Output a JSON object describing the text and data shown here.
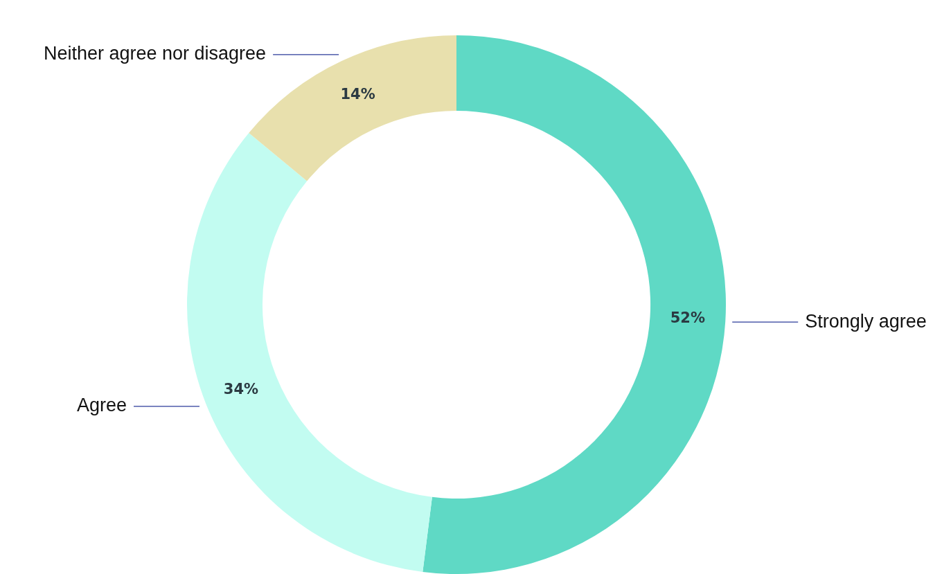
{
  "chart_data": {
    "type": "donut",
    "categories": [
      "Strongly agree",
      "Agree",
      "Neither agree nor disagree"
    ],
    "values": [
      52,
      34,
      14
    ],
    "colors": [
      "#5fd9c5",
      "#c2fcf1",
      "#e8e0ad"
    ],
    "value_labels": [
      "52%",
      "34%",
      "14%"
    ]
  }
}
